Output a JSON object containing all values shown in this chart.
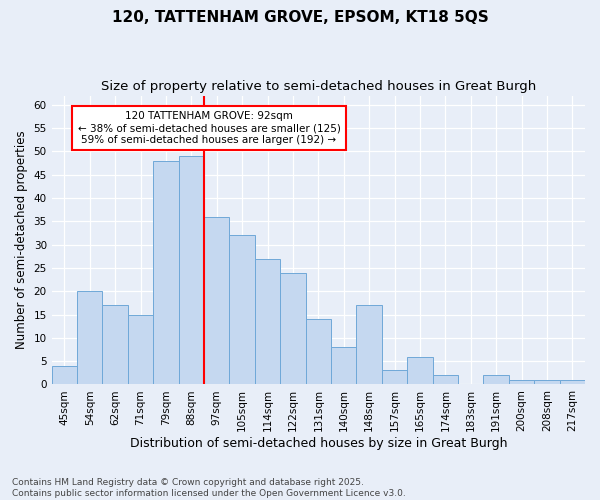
{
  "title1": "120, TATTENHAM GROVE, EPSOM, KT18 5QS",
  "title2": "Size of property relative to semi-detached houses in Great Burgh",
  "xlabel": "Distribution of semi-detached houses by size in Great Burgh",
  "ylabel": "Number of semi-detached properties",
  "categories": [
    "45sqm",
    "54sqm",
    "62sqm",
    "71sqm",
    "79sqm",
    "88sqm",
    "97sqm",
    "105sqm",
    "114sqm",
    "122sqm",
    "131sqm",
    "140sqm",
    "148sqm",
    "157sqm",
    "165sqm",
    "174sqm",
    "183sqm",
    "191sqm",
    "200sqm",
    "208sqm",
    "217sqm"
  ],
  "values": [
    4,
    20,
    17,
    15,
    48,
    49,
    36,
    32,
    27,
    24,
    14,
    8,
    17,
    3,
    6,
    2,
    0,
    2,
    1,
    1,
    1
  ],
  "bar_color": "#c5d8f0",
  "bar_edge_color": "#6fa8d8",
  "background_color": "#e8eef8",
  "grid_color": "#ffffff",
  "property_line_x": 6.0,
  "annotation_text_line1": "120 TATTENHAM GROVE: 92sqm",
  "annotation_text_line2": "← 38% of semi-detached houses are smaller (125)",
  "annotation_text_line3": "59% of semi-detached houses are larger (192) →",
  "ylim": [
    0,
    62
  ],
  "yticks": [
    0,
    5,
    10,
    15,
    20,
    25,
    30,
    35,
    40,
    45,
    50,
    55,
    60
  ],
  "footnote": "Contains HM Land Registry data © Crown copyright and database right 2025.\nContains public sector information licensed under the Open Government Licence v3.0.",
  "title1_fontsize": 11,
  "title2_fontsize": 9.5,
  "xlabel_fontsize": 9,
  "ylabel_fontsize": 8.5,
  "tick_fontsize": 7.5,
  "annotation_fontsize": 7.5,
  "footnote_fontsize": 6.5
}
